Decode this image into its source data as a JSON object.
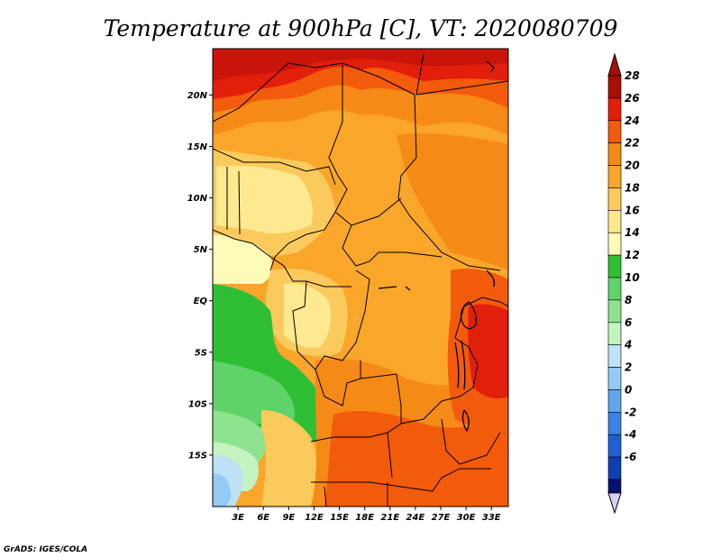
{
  "title": "Temperature at 900hPa [C], VT: 2020080709",
  "footer": "GrADS: IGES/COLA",
  "map": {
    "lon_range": [
      0,
      35
    ],
    "lat_range": [
      -20,
      24.5
    ],
    "lat_ticks": [
      {
        "value": 20,
        "label": "20N"
      },
      {
        "value": 15,
        "label": "15N"
      },
      {
        "value": 10,
        "label": "10N"
      },
      {
        "value": 5,
        "label": "5N"
      },
      {
        "value": 0,
        "label": "EQ"
      },
      {
        "value": -5,
        "label": "5S"
      },
      {
        "value": -10,
        "label": "10S"
      },
      {
        "value": -15,
        "label": "15S"
      }
    ],
    "lon_ticks": [
      {
        "value": 3,
        "label": "3E"
      },
      {
        "value": 6,
        "label": "6E"
      },
      {
        "value": 9,
        "label": "9E"
      },
      {
        "value": 12,
        "label": "12E"
      },
      {
        "value": 15,
        "label": "15E"
      },
      {
        "value": 18,
        "label": "18E"
      },
      {
        "value": 21,
        "label": "21E"
      },
      {
        "value": 24,
        "label": "24E"
      },
      {
        "value": 27,
        "label": "27E"
      },
      {
        "value": 30,
        "label": "30E"
      },
      {
        "value": 33,
        "label": "33E"
      }
    ]
  },
  "colorbar": {
    "levels": [
      {
        "label": "28",
        "color": "#a50f04"
      },
      {
        "label": "26",
        "color": "#e21f0a"
      },
      {
        "label": "24",
        "color": "#f25a0c"
      },
      {
        "label": "22",
        "color": "#f68a16"
      },
      {
        "label": "20",
        "color": "#f9a62b"
      },
      {
        "label": "18",
        "color": "#fbca5c"
      },
      {
        "label": "16",
        "color": "#fde98f"
      },
      {
        "label": "14",
        "color": "#fefbb8"
      },
      {
        "label": "12",
        "color": "#2fbf35"
      },
      {
        "label": "10",
        "color": "#5fd36a"
      },
      {
        "label": "8",
        "color": "#8fe38f"
      },
      {
        "label": "6",
        "color": "#c3f3c0"
      },
      {
        "label": "4",
        "color": "#bfe1f7"
      },
      {
        "label": "2",
        "color": "#93cbf4"
      },
      {
        "label": "0",
        "color": "#62a6ee"
      },
      {
        "label": "-2",
        "color": "#3a82e4"
      },
      {
        "label": "-4",
        "color": "#1f5fd4"
      },
      {
        "label": "-6",
        "color": "#0f3fb2"
      }
    ],
    "top_extend_color": "#a50f04",
    "bottom_end_color": "#06126e",
    "bottom_extend_color": "#d6d0f5"
  }
}
